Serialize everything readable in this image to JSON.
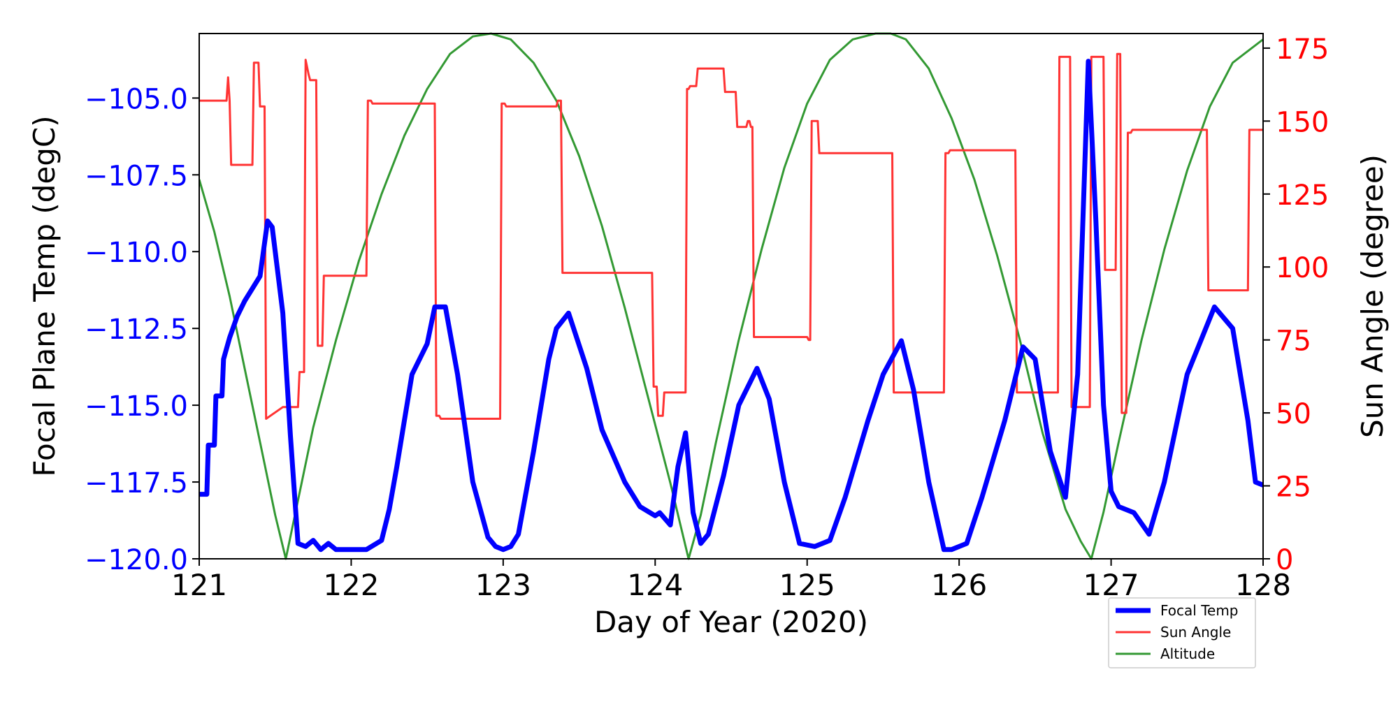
{
  "chart_data": {
    "type": "line",
    "xlabel": "Day of Year (2020)",
    "ylabel_left": "Focal Plane Temp (degC)",
    "ylabel_right": "Sun Angle (degree)",
    "xlim": [
      121,
      128
    ],
    "ylim_left": [
      -120.0,
      -102.9
    ],
    "ylim_right": [
      0,
      180
    ],
    "x_ticks": [
      121,
      122,
      123,
      124,
      125,
      126,
      127,
      128
    ],
    "y_ticks_left": [
      -120.0,
      -117.5,
      -115.0,
      -112.5,
      -110.0,
      -107.5,
      -105.0
    ],
    "y_ticks_right": [
      0,
      25,
      50,
      75,
      100,
      125,
      150,
      175
    ],
    "grid": false,
    "legend_position": "bottom-right, below axes",
    "colors": {
      "focal": "#0000ff",
      "sun": "#ff3333",
      "altitude": "#339933",
      "left_axis": "#0000ff",
      "right_axis": "#ff0000"
    },
    "series": [
      {
        "name": "Focal Temp",
        "axis": "left",
        "color": "#0000ff",
        "x": [
          121.0,
          121.05,
          121.06,
          121.1,
          121.11,
          121.15,
          121.16,
          121.2,
          121.25,
          121.3,
          121.35,
          121.4,
          121.45,
          121.48,
          121.55,
          121.6,
          121.65,
          121.7,
          121.75,
          121.8,
          121.85,
          121.9,
          122.0,
          122.1,
          122.2,
          122.25,
          122.3,
          122.35,
          122.4,
          122.5,
          122.55,
          122.62,
          122.7,
          122.8,
          122.9,
          122.95,
          123.0,
          123.05,
          123.1,
          123.2,
          123.3,
          123.35,
          123.43,
          123.55,
          123.65,
          123.8,
          123.9,
          124.0,
          124.03,
          124.1,
          124.15,
          124.2,
          124.25,
          124.3,
          124.35,
          124.45,
          124.55,
          124.67,
          124.75,
          124.85,
          124.95,
          125.05,
          125.15,
          125.25,
          125.4,
          125.5,
          125.62,
          125.7,
          125.8,
          125.9,
          125.95,
          126.05,
          126.15,
          126.3,
          126.42,
          126.5,
          126.6,
          126.7,
          126.78,
          126.85,
          126.9,
          126.95,
          127.0,
          127.05,
          127.15,
          127.25,
          127.35,
          127.5,
          127.68,
          127.8,
          127.9,
          127.95,
          128.0
        ],
        "y": [
          -117.9,
          -117.9,
          -116.3,
          -116.3,
          -114.7,
          -114.7,
          -113.5,
          -112.8,
          -112.1,
          -111.6,
          -111.2,
          -110.8,
          -109.0,
          -109.2,
          -112.0,
          -116.0,
          -119.5,
          -119.6,
          -119.4,
          -119.7,
          -119.5,
          -119.7,
          -119.7,
          -119.7,
          -119.4,
          -118.4,
          -117.0,
          -115.5,
          -114.0,
          -113.0,
          -111.8,
          -111.8,
          -114.0,
          -117.5,
          -119.3,
          -119.6,
          -119.7,
          -119.6,
          -119.2,
          -116.5,
          -113.5,
          -112.5,
          -112.0,
          -113.8,
          -115.8,
          -117.5,
          -118.3,
          -118.6,
          -118.5,
          -118.9,
          -117.0,
          -115.9,
          -118.5,
          -119.5,
          -119.2,
          -117.3,
          -115.0,
          -113.8,
          -114.8,
          -117.5,
          -119.5,
          -119.6,
          -119.4,
          -118.0,
          -115.5,
          -114.0,
          -112.9,
          -114.5,
          -117.5,
          -119.7,
          -119.7,
          -119.5,
          -118.0,
          -115.5,
          -113.1,
          -113.5,
          -116.5,
          -118.0,
          -114.0,
          -103.8,
          -109.0,
          -115.0,
          -117.8,
          -118.3,
          -118.5,
          -119.2,
          -117.5,
          -114.0,
          -111.8,
          -112.5,
          -115.5,
          -117.5,
          -117.6
        ]
      },
      {
        "name": "Sun Angle",
        "axis": "right",
        "color": "#ff3333",
        "x": [
          121.0,
          121.18,
          121.19,
          121.2,
          121.21,
          121.35,
          121.36,
          121.39,
          121.4,
          121.43,
          121.44,
          121.55,
          121.56,
          121.65,
          121.66,
          121.69,
          121.7,
          121.72,
          121.73,
          121.77,
          121.78,
          121.81,
          121.82,
          121.85,
          121.86,
          122.1,
          122.11,
          122.13,
          122.14,
          122.55,
          122.56,
          122.58,
          122.59,
          122.98,
          122.99,
          123.01,
          123.02,
          123.35,
          123.36,
          123.38,
          123.39,
          123.4,
          123.41,
          123.98,
          123.99,
          124.01,
          124.02,
          124.05,
          124.06,
          124.11,
          124.12,
          124.2,
          124.21,
          124.22,
          124.23,
          124.27,
          124.28,
          124.45,
          124.46,
          124.53,
          124.54,
          124.6,
          124.61,
          124.62,
          124.63,
          124.64,
          124.65,
          125.0,
          125.01,
          125.02,
          125.03,
          125.07,
          125.08,
          125.56,
          125.57,
          125.59,
          125.6,
          125.9,
          125.91,
          125.93,
          125.94,
          126.37,
          126.38,
          126.4,
          126.41,
          126.65,
          126.66,
          126.67,
          126.68,
          126.73,
          126.74,
          126.77,
          126.78,
          126.86,
          126.87,
          126.88,
          126.89,
          126.95,
          126.96,
          127.03,
          127.04,
          127.06,
          127.07,
          127.1,
          127.11,
          127.13,
          127.14,
          127.63,
          127.64,
          127.66,
          127.67,
          127.9,
          127.91,
          127.93,
          127.94,
          128.0
        ],
        "y": [
          157,
          157,
          165,
          157,
          135,
          135,
          170,
          170,
          155,
          155,
          48,
          52,
          52,
          52,
          64,
          64,
          171,
          166,
          164,
          164,
          73,
          73,
          97,
          97,
          97,
          97,
          157,
          157,
          156,
          156,
          49,
          49,
          48,
          48,
          156,
          156,
          155,
          155,
          157,
          157,
          98,
          98,
          98,
          98,
          59,
          59,
          49,
          49,
          57,
          57,
          57,
          57,
          161,
          161,
          162,
          162,
          168,
          168,
          160,
          160,
          148,
          148,
          150,
          150,
          148,
          148,
          76,
          76,
          75,
          75,
          150,
          150,
          139,
          139,
          57,
          57,
          57,
          57,
          139,
          139,
          140,
          140,
          57,
          57,
          57,
          57,
          172,
          172,
          172,
          172,
          52,
          52,
          52,
          52,
          172,
          172,
          172,
          172,
          99,
          99,
          173,
          173,
          50,
          50,
          146,
          146,
          147,
          147,
          92,
          92,
          92,
          92,
          147,
          147,
          147,
          147
        ]
      },
      {
        "name": "Altitude",
        "axis": "right",
        "color": "#339933",
        "x": [
          121.0,
          121.1,
          121.2,
          121.3,
          121.4,
          121.5,
          121.57,
          121.65,
          121.75,
          121.9,
          122.05,
          122.2,
          122.35,
          122.5,
          122.65,
          122.8,
          122.92,
          123.05,
          123.2,
          123.35,
          123.5,
          123.65,
          123.8,
          123.95,
          124.1,
          124.22,
          124.3,
          124.4,
          124.55,
          124.7,
          124.85,
          125.0,
          125.15,
          125.3,
          125.45,
          125.55,
          125.65,
          125.8,
          125.95,
          126.1,
          126.25,
          126.4,
          126.55,
          126.7,
          126.8,
          126.87,
          126.95,
          127.05,
          127.2,
          127.35,
          127.5,
          127.65,
          127.8,
          128.0
        ],
        "y": [
          130,
          112,
          90,
          65,
          40,
          15,
          0,
          20,
          45,
          75,
          102,
          125,
          145,
          161,
          173,
          179,
          180,
          178,
          170,
          157,
          138,
          114,
          86,
          56,
          26,
          0,
          15,
          40,
          75,
          106,
          134,
          156,
          171,
          178,
          180,
          180,
          178,
          168,
          151,
          130,
          104,
          75,
          43,
          17,
          6,
          0,
          16,
          40,
          75,
          106,
          133,
          155,
          170,
          178
        ]
      }
    ]
  }
}
